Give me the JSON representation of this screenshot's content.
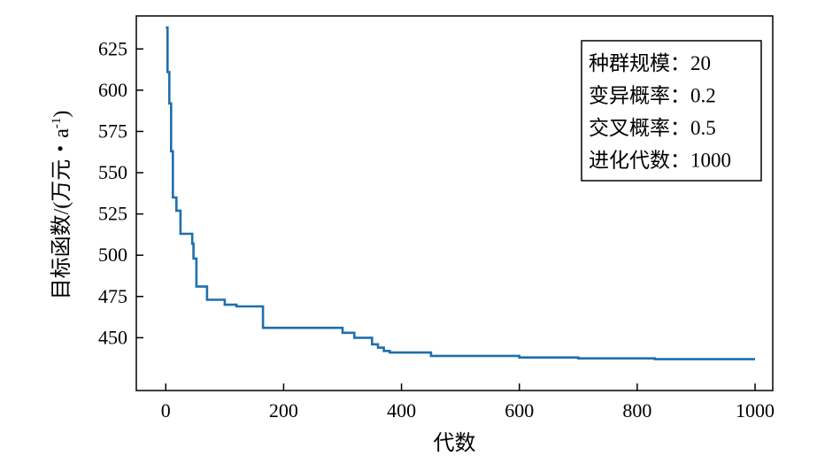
{
  "chart_data": {
    "type": "line",
    "xlabel": "代数",
    "ylabel_prefix": "目标函数/(万元・a",
    "ylabel_sup": "-1",
    "ylabel_suffix": ")",
    "xlim": [
      -50,
      1030
    ],
    "ylim": [
      418,
      645
    ],
    "xticks": [
      0,
      200,
      400,
      600,
      800,
      1000
    ],
    "xtick_labels": [
      "0",
      "200",
      "400",
      "600",
      "800",
      "1000"
    ],
    "yticks": [
      450,
      475,
      500,
      525,
      550,
      575,
      600,
      625
    ],
    "ytick_labels": [
      "450",
      "475",
      "500",
      "525",
      "550",
      "575",
      "600",
      "625"
    ],
    "grid": false,
    "line_color": "#1f6fad",
    "annotation": {
      "position": "top-right",
      "lines": [
        "种群规模：20",
        "变异概率：0.2",
        "交叉概率：0.5",
        "进化代数：1000"
      ]
    },
    "series": [
      {
        "step": true,
        "x": [
          0,
          3,
          6,
          9,
          12,
          18,
          25,
          30,
          45,
          47,
          52,
          70,
          100,
          120,
          165,
          230,
          300,
          320,
          350,
          360,
          370,
          380,
          450,
          500,
          600,
          700,
          830,
          1000
        ],
        "y": [
          638,
          611,
          592,
          563,
          535,
          527,
          513,
          513,
          507,
          498,
          481,
          473,
          470,
          469,
          456,
          456,
          453,
          450,
          446,
          444,
          442,
          441,
          439,
          439,
          438,
          437.5,
          437,
          437
        ]
      }
    ]
  }
}
